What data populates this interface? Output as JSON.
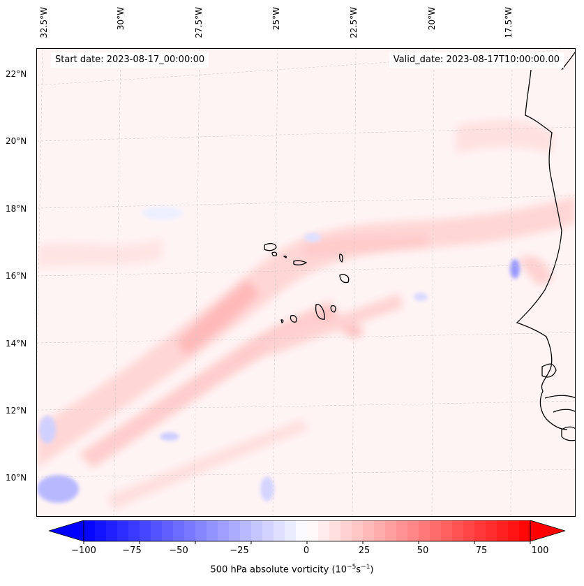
{
  "map": {
    "title_left": "Start date: 2023-08-17_00:00:00",
    "title_right": "Valid_date: 2023-08-17T10:00:00.00",
    "lon_labels": [
      "32.5°W",
      "30°W",
      "27.5°W",
      "25°W",
      "22.5°W",
      "20°W",
      "17.5°W"
    ],
    "lat_labels": [
      "22°N",
      "20°N",
      "18°N",
      "16°N",
      "14°N",
      "12°N",
      "10°N"
    ],
    "colors": {
      "negative": "#0000ff",
      "positive": "#ff0000",
      "coast": "#000000",
      "grid": "#bbbbbb"
    }
  },
  "colorbar": {
    "label_main": "500 hPa absolute vorticity (10",
    "label_exp1": "−5",
    "label_mid": "s",
    "label_exp2": "−1",
    "label_end": ")",
    "ticks": [
      "−100",
      "−75",
      "−50",
      "−25",
      "0",
      "25",
      "50",
      "75",
      "100"
    ],
    "vmin": -100,
    "vmax": 100
  }
}
